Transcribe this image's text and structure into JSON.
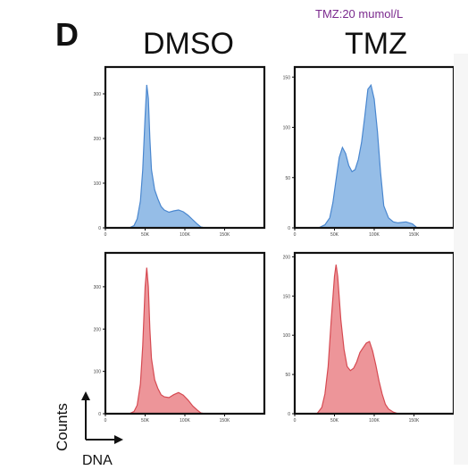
{
  "figure": {
    "panel_letter": "D",
    "treatment_note": "TMZ:20 mumol/L",
    "column_titles": [
      "DMSO",
      "TMZ"
    ],
    "xlabel": "DNA",
    "ylabel": "Counts"
  },
  "colors": {
    "top_fill": "#8fb9e6",
    "top_stroke": "#4a87cf",
    "bottom_fill": "#ec8f93",
    "bottom_stroke": "#d64a52"
  },
  "chart_data": [
    {
      "type": "area",
      "title": "DMSO",
      "color": "#8fb9e6",
      "x": [
        30,
        36,
        40,
        44,
        47,
        50,
        52,
        54,
        56,
        58,
        62,
        66,
        70,
        74,
        80,
        86,
        92,
        98,
        104,
        110,
        116,
        120,
        125
      ],
      "y": [
        0,
        5,
        20,
        60,
        130,
        250,
        320,
        290,
        200,
        130,
        85,
        65,
        48,
        40,
        35,
        38,
        40,
        36,
        28,
        18,
        8,
        2,
        0
      ],
      "xlim": [
        0,
        200
      ],
      "ylim": [
        0,
        360
      ],
      "xticks": [
        0,
        50,
        100,
        150
      ],
      "xtick_labels": [
        "0",
        "50K",
        "100K",
        "150K"
      ],
      "yticks": [
        0,
        100,
        200,
        300
      ],
      "ytick_labels": [
        "0",
        "100",
        "200",
        "300"
      ]
    },
    {
      "type": "area",
      "title": "TMZ",
      "color": "#8fb9e6",
      "x": [
        30,
        38,
        44,
        48,
        52,
        56,
        60,
        64,
        68,
        72,
        76,
        80,
        84,
        88,
        92,
        96,
        100,
        104,
        108,
        112,
        118,
        124,
        130,
        140,
        148,
        154
      ],
      "y": [
        0,
        3,
        10,
        25,
        48,
        70,
        80,
        74,
        62,
        56,
        58,
        68,
        85,
        110,
        138,
        142,
        128,
        96,
        55,
        22,
        10,
        6,
        5,
        6,
        4,
        0
      ],
      "xlim": [
        0,
        200
      ],
      "ylim": [
        0,
        160
      ],
      "xticks": [
        0,
        50,
        100,
        150
      ],
      "xtick_labels": [
        "0",
        "50K",
        "100K",
        "150K"
      ],
      "yticks": [
        0,
        50,
        100,
        150
      ],
      "ytick_labels": [
        "0",
        "50",
        "100",
        "150"
      ]
    },
    {
      "type": "area",
      "title": "DMSO",
      "color": "#ec8f93",
      "x": [
        30,
        36,
        40,
        44,
        47,
        50,
        52,
        54,
        56,
        58,
        62,
        66,
        70,
        74,
        80,
        86,
        92,
        98,
        104,
        110,
        116,
        120,
        125
      ],
      "y": [
        0,
        5,
        20,
        70,
        160,
        300,
        345,
        300,
        200,
        130,
        80,
        60,
        45,
        40,
        38,
        45,
        50,
        44,
        32,
        18,
        8,
        2,
        0
      ],
      "xlim": [
        0,
        200
      ],
      "ylim": [
        0,
        380
      ],
      "xticks": [
        0,
        50,
        100,
        150
      ],
      "xtick_labels": [
        "0",
        "50K",
        "100K",
        "150K"
      ],
      "yticks": [
        0,
        100,
        200,
        300
      ],
      "ytick_labels": [
        "0",
        "100",
        "200",
        "300"
      ]
    },
    {
      "type": "area",
      "title": "TMZ",
      "color": "#ec8f93",
      "x": [
        28,
        34,
        38,
        42,
        46,
        50,
        52,
        54,
        58,
        62,
        66,
        70,
        74,
        78,
        82,
        86,
        90,
        94,
        98,
        102,
        106,
        110,
        114,
        118,
        124,
        130
      ],
      "y": [
        0,
        8,
        25,
        60,
        120,
        175,
        190,
        175,
        120,
        82,
        60,
        55,
        58,
        66,
        78,
        84,
        90,
        92,
        80,
        62,
        42,
        25,
        12,
        6,
        2,
        0
      ],
      "xlim": [
        0,
        200
      ],
      "ylim": [
        0,
        205
      ],
      "xticks": [
        0,
        50,
        100,
        150
      ],
      "xtick_labels": [
        "0",
        "50K",
        "100K",
        "150K"
      ],
      "yticks": [
        0,
        50,
        100,
        150,
        200
      ],
      "ytick_labels": [
        "0",
        "50",
        "100",
        "150",
        "200"
      ]
    }
  ]
}
